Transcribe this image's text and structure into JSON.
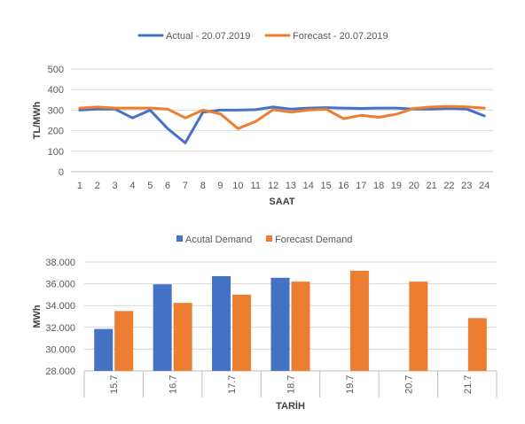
{
  "colors": {
    "actual": "#4472c4",
    "forecast": "#ed7d31",
    "grid": "#d9d9d9"
  },
  "chart_data": [
    {
      "type": "line",
      "title": "",
      "xlabel": "SAAT",
      "ylabel": "TL/MWh",
      "ylim": [
        0,
        500
      ],
      "yticks": [
        "0",
        "100",
        "200",
        "300",
        "400",
        "500"
      ],
      "x": [
        "1",
        "2",
        "3",
        "4",
        "5",
        "6",
        "7",
        "8",
        "9",
        "10",
        "11",
        "12",
        "13",
        "14",
        "15",
        "16",
        "17",
        "18",
        "19",
        "20",
        "21",
        "22",
        "23",
        "24"
      ],
      "grid": true,
      "legend": "top",
      "series": [
        {
          "name": "Actual - 20.07.2019",
          "color": "#4472c4",
          "values": [
            300,
            305,
            305,
            262,
            300,
            210,
            140,
            290,
            300,
            300,
            302,
            315,
            305,
            310,
            312,
            310,
            308,
            310,
            310,
            305,
            305,
            308,
            305,
            272
          ]
        },
        {
          "name": "Forecast - 20.07.2019",
          "color": "#ed7d31",
          "values": [
            310,
            315,
            310,
            310,
            310,
            305,
            262,
            300,
            282,
            210,
            245,
            302,
            290,
            300,
            305,
            258,
            275,
            265,
            280,
            308,
            315,
            318,
            316,
            310
          ]
        }
      ]
    },
    {
      "type": "bar",
      "title": "",
      "xlabel": "TARİH",
      "ylabel": "MWh",
      "ylim": [
        28000,
        38000
      ],
      "yticks": [
        "28.000",
        "30.000",
        "32.000",
        "34.000",
        "36.000",
        "38.000"
      ],
      "categories": [
        "15.7",
        "16.7",
        "17.7",
        "18.7",
        "19.7",
        "20.7",
        "21.7"
      ],
      "grid": true,
      "legend": "top",
      "series": [
        {
          "name": "Acutal Demand",
          "color": "#4472c4",
          "values": [
            31850,
            35950,
            36700,
            36550,
            null,
            null,
            null
          ]
        },
        {
          "name": "Forecast Demand",
          "color": "#ed7d31",
          "values": [
            33500,
            34250,
            35000,
            36200,
            37200,
            36200,
            32850
          ]
        }
      ]
    }
  ]
}
